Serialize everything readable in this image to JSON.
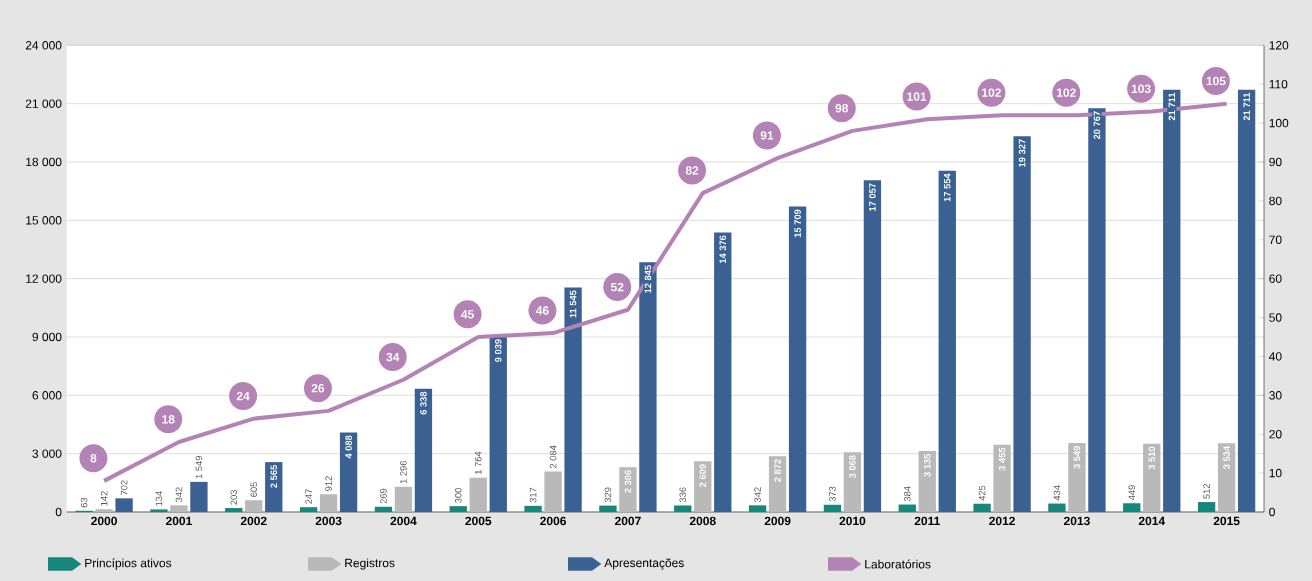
{
  "chart_data": {
    "type": "bar",
    "categories": [
      "2000",
      "2001",
      "2002",
      "2003",
      "2004",
      "2005",
      "2006",
      "2007",
      "2008",
      "2009",
      "2010",
      "2011",
      "2012",
      "2013",
      "2014",
      "2015"
    ],
    "series": [
      {
        "name": "Princípios ativos",
        "color": "#17877e",
        "values": [
          63,
          134,
          203,
          247,
          269,
          300,
          317,
          329,
          336,
          342,
          373,
          384,
          425,
          434,
          449,
          512
        ],
        "value_labels": [
          "63",
          "134",
          "203",
          "247",
          "269",
          "300",
          "317",
          "329",
          "336",
          "342",
          "373",
          "384",
          "425",
          "434",
          "449",
          "512"
        ]
      },
      {
        "name": "Registros",
        "color": "#b9b9b9",
        "values": [
          142,
          342,
          605,
          912,
          1296,
          1764,
          2084,
          2306,
          2609,
          2872,
          3068,
          3135,
          3455,
          3549,
          3510,
          3534
        ],
        "value_labels": [
          "142",
          "342",
          "605",
          "912",
          "1 296",
          "1 764",
          "2 084",
          "2 306",
          "2 609",
          "2 872",
          "3 068",
          "3 135",
          "3 455",
          "3 549",
          "3 510",
          "3 534"
        ]
      },
      {
        "name": "Apresentações",
        "color": "#3b6193",
        "values": [
          702,
          1549,
          2565,
          4088,
          6338,
          9039,
          11545,
          12845,
          14376,
          15709,
          17057,
          17554,
          19327,
          20767,
          21711,
          21711
        ],
        "value_labels": [
          "702",
          "1 549",
          "2 565",
          "4 088",
          "6 338",
          "9 039",
          "11 545",
          "12 845",
          "14 376",
          "15 709",
          "17 057",
          "17 554",
          "19 327",
          "20 767",
          "21 711",
          "21 711"
        ]
      },
      {
        "name": "Laboratórios",
        "color": "#b383b5",
        "type": "line",
        "axis": "y2",
        "values": [
          8,
          18,
          24,
          26,
          34,
          45,
          46,
          52,
          82,
          91,
          98,
          101,
          102,
          102,
          103,
          105
        ],
        "value_labels": [
          "8",
          "18",
          "24",
          "26",
          "34",
          "45",
          "46",
          "52",
          "82",
          "91",
          "98",
          "101",
          "102",
          "102",
          "103",
          "105"
        ]
      }
    ],
    "ylim": [
      0,
      24000
    ],
    "yticks": [
      0,
      {
        "value": 3000,
        "label": "3 000"
      },
      {
        "value": 6000,
        "label": "6 000"
      },
      {
        "value": 9000,
        "label": "9 000"
      },
      {
        "value": 12000,
        "label": "12 000"
      },
      {
        "value": 15000,
        "label": "15 000"
      },
      {
        "value": 18000,
        "label": "18 000"
      },
      {
        "value": 21000,
        "label": "21 000"
      },
      {
        "value": 24000,
        "label": "24 000"
      }
    ],
    "y2lim": [
      0,
      120
    ],
    "y2ticks": [
      0,
      10,
      20,
      30,
      40,
      50,
      60,
      70,
      80,
      90,
      100,
      110,
      120
    ],
    "grid": "y",
    "legend": "bottom",
    "line_style": "solid",
    "marker": "none"
  }
}
